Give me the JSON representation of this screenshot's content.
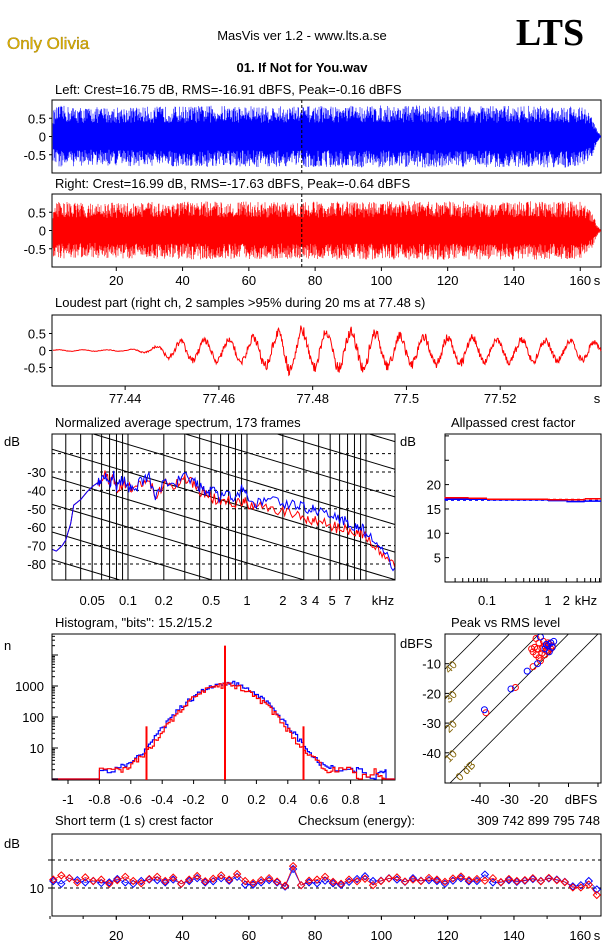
{
  "header": {
    "artist": "Only Olivia",
    "app_title": "MasVis ver 1.2 - www.lts.a.se",
    "brand": "LTS",
    "file_name": "01. If Not for You.wav"
  },
  "colors": {
    "left": "#0000ff",
    "right": "#ff0000"
  },
  "chart_data": [
    {
      "id": "left_waveform",
      "type": "area",
      "title": "Left: Crest=16.75 dB, RMS=-16.91 dBFS, Peak=-0.16 dBFS",
      "yticks": [
        "0.5",
        "0",
        "-0.5"
      ],
      "ylim": [
        -1,
        1
      ],
      "xlim": [
        0,
        166
      ],
      "envelope_t": [
        0,
        2,
        10,
        30,
        50,
        70,
        90,
        110,
        130,
        150,
        160,
        163,
        165,
        166
      ],
      "envelope": [
        0.7,
        0.85,
        0.8,
        0.82,
        0.85,
        0.83,
        0.85,
        0.85,
        0.84,
        0.85,
        0.85,
        0.6,
        0.15,
        0.02
      ]
    },
    {
      "id": "right_waveform",
      "type": "area",
      "title": "Right: Crest=16.99 dB, RMS=-17.63 dBFS, Peak=-0.64 dBFS",
      "yticks": [
        "0.5",
        "0",
        "-0.5"
      ],
      "xticks": [
        "20",
        "40",
        "60",
        "80",
        "100",
        "120",
        "140",
        "160"
      ],
      "xunit": "s",
      "ylim": [
        -1,
        1
      ],
      "xlim": [
        0,
        166
      ],
      "marker_time": 77.48,
      "envelope_t": [
        0,
        2,
        10,
        30,
        50,
        70,
        90,
        110,
        130,
        150,
        160,
        163,
        165,
        166
      ],
      "envelope": [
        0.7,
        0.8,
        0.75,
        0.78,
        0.8,
        0.78,
        0.8,
        0.8,
        0.8,
        0.8,
        0.8,
        0.55,
        0.12,
        0.02
      ]
    },
    {
      "id": "loudest_part",
      "type": "line",
      "title": "Loudest part (right ch, 2 samples >95% during 20 ms at 77.48 s)",
      "yticks": [
        "0.5",
        "0",
        "-0.5"
      ],
      "xticks": [
        "77.44",
        "77.46",
        "77.48",
        "77.5",
        "77.52"
      ],
      "xunit": "s",
      "ylim": [
        -1,
        1
      ],
      "xlim": [
        77.4244,
        77.5415
      ],
      "envelope_t": [
        77.4244,
        77.44,
        77.445,
        77.452,
        77.465,
        77.477,
        77.48,
        77.49,
        77.5,
        77.52,
        77.5415
      ],
      "envelope": [
        0.03,
        0.03,
        0.1,
        0.4,
        0.45,
        0.9,
        0.7,
        0.8,
        0.6,
        0.5,
        0.35
      ]
    },
    {
      "id": "spectrum",
      "type": "line",
      "title": "Normalized average spectrum, 173 frames",
      "ylabel": "dB",
      "yticks": [
        "-30",
        "-40",
        "-50",
        "-60",
        "-70",
        "-80"
      ],
      "xticks": [
        "0.05",
        "0.1",
        "0.2",
        "0.5",
        "1",
        "2",
        "3",
        "4",
        "5",
        "7"
      ],
      "xunit": "kHz",
      "ylim": [
        -88.7,
        -9.3
      ],
      "x_log": true,
      "grid": true,
      "freq_khz": [
        0.023,
        0.025,
        0.028,
        0.03,
        0.033,
        0.035,
        0.04,
        0.045,
        0.05,
        0.055,
        0.06,
        0.065,
        0.07,
        0.075,
        0.08,
        0.09,
        0.1,
        0.11,
        0.13,
        0.15,
        0.17,
        0.2,
        0.25,
        0.3,
        0.35,
        0.4,
        0.45,
        0.5,
        0.6,
        0.7,
        0.8,
        0.9,
        1.0,
        1.2,
        1.5,
        2.0,
        2.5,
        3.0,
        3.5,
        4.0,
        5.0,
        6.0,
        7.0,
        8.0,
        9.0,
        10.0,
        12.0,
        14.0,
        17.5
      ],
      "series": [
        {
          "name": "left",
          "values": [
            -72,
            -73,
            -70,
            -67,
            -58,
            -48,
            -45,
            -41,
            -38,
            -36,
            -34,
            -32,
            -37,
            -30,
            -39,
            -34,
            -38,
            -40,
            -35,
            -33,
            -43,
            -35,
            -36,
            -32,
            -35,
            -38,
            -41,
            -40,
            -44,
            -41,
            -46,
            -38,
            -44,
            -47,
            -44,
            -47,
            -48,
            -49,
            -50,
            -51,
            -53,
            -56,
            -57,
            -60,
            -60,
            -63,
            -70,
            -74,
            -82
          ]
        },
        {
          "name": "right",
          "values": [
            -72,
            -73,
            -70,
            -67,
            -58,
            -48,
            -45,
            -41,
            -38,
            -36,
            -35,
            -30,
            -38,
            -31,
            -41,
            -36,
            -38,
            -41,
            -36,
            -34,
            -44,
            -36,
            -37,
            -33,
            -36,
            -40,
            -42,
            -44,
            -46,
            -44,
            -48,
            -46,
            -47,
            -49,
            -50,
            -51,
            -53,
            -55,
            -56,
            -57,
            -59,
            -61,
            -61,
            -62,
            -63,
            -65,
            -71,
            -76,
            -82
          ]
        }
      ]
    },
    {
      "id": "allpassed_crest",
      "type": "line",
      "title": "Allpassed crest factor",
      "ylabel": "dB",
      "yticks": [
        "20",
        "15",
        "10",
        "5"
      ],
      "xticks": [
        "0.1",
        "1",
        "2"
      ],
      "xunit": "kHz",
      "ylim": [
        0,
        30.4
      ],
      "x_log": true,
      "freq_khz": [
        0.02,
        0.05,
        0.1,
        0.3,
        1,
        2,
        4,
        7.4
      ],
      "series": [
        {
          "name": "left",
          "values": [
            17.0,
            17.0,
            16.9,
            16.9,
            16.7,
            16.5,
            16.6,
            16.8
          ]
        },
        {
          "name": "right",
          "values": [
            17.3,
            17.2,
            17.0,
            17.0,
            16.9,
            16.9,
            17.1,
            17.4
          ]
        }
      ],
      "reference_lines": [
        {
          "name": "left",
          "value": 16.75
        },
        {
          "name": "right",
          "value": 16.99
        }
      ]
    },
    {
      "id": "histogram",
      "type": "line",
      "title": "Histogram, \"bits\": 15.2/15.2",
      "ylabel": "n",
      "yticks": [
        "1000",
        "100",
        "10"
      ],
      "xticks": [
        "-1",
        "-0.8",
        "-0.6",
        "-0.4",
        "-0.2",
        "0",
        "0.2",
        "0.4",
        "0.6",
        "0.8",
        "1"
      ],
      "y_log": true,
      "xlim": [
        -1.1,
        1.1
      ],
      "ylim": [
        1,
        50000
      ],
      "x": [
        -0.8,
        -0.7,
        -0.65,
        -0.6,
        -0.55,
        -0.5,
        -0.45,
        -0.4,
        -0.35,
        -0.3,
        -0.25,
        -0.2,
        -0.15,
        -0.1,
        -0.05,
        0,
        0.05,
        0.1,
        0.15,
        0.2,
        0.25,
        0.3,
        0.35,
        0.4,
        0.45,
        0.5,
        0.55,
        0.6,
        0.65,
        0.7,
        0.8,
        0.85,
        0.95,
        1.0
      ],
      "series": [
        {
          "name": "left",
          "values": [
            2,
            2,
            3,
            3,
            6,
            10,
            22,
            45,
            90,
            170,
            300,
            480,
            700,
            950,
            1150,
            1300,
            1200,
            1000,
            750,
            520,
            320,
            190,
            100,
            50,
            24,
            12,
            6,
            3,
            3,
            2,
            2,
            2,
            1,
            2
          ],
          "spikes": []
        },
        {
          "name": "right",
          "values": [
            2,
            2,
            2,
            3,
            5,
            8,
            17,
            36,
            75,
            150,
            260,
            420,
            620,
            850,
            1000,
            1100,
            1000,
            850,
            620,
            420,
            260,
            150,
            75,
            36,
            17,
            8,
            5,
            3,
            2,
            2,
            2,
            1,
            2,
            1
          ],
          "spikes": [
            {
              "x": 0,
              "n": 20000
            },
            {
              "x": -0.5,
              "n": 50
            },
            {
              "x": 0.5,
              "n": 50
            }
          ]
        }
      ]
    },
    {
      "id": "peak_vs_rms",
      "type": "scatter",
      "title": "Peak vs RMS level",
      "ylabel": "dBFS",
      "xlabel": "dBFS",
      "yticks": [
        "-10",
        "-20",
        "-30",
        "-40"
      ],
      "xticks": [
        "-40",
        "-30",
        "-20"
      ],
      "xlim": [
        -52,
        1
      ],
      "ylim": [
        -50,
        0
      ],
      "crest_lines": [
        "0 dB",
        "10",
        "20",
        "30",
        "40"
      ],
      "series": [
        {
          "name": "left",
          "points": [
            [
              -38.5,
              -25.5
            ],
            [
              -29.5,
              -18.5
            ],
            [
              -24,
              -12.5
            ],
            [
              -20.5,
              -10
            ],
            [
              -19.5,
              -1
            ],
            [
              -15,
              -2.5
            ],
            [
              -16,
              -3
            ],
            [
              -17,
              -4
            ],
            [
              -18,
              -5
            ],
            [
              -16.5,
              -6
            ],
            [
              -15.5,
              -4.5
            ],
            [
              -17.5,
              -3.5
            ]
          ]
        },
        {
          "name": "right",
          "points": [
            [
              -38,
              -26.5
            ],
            [
              -28,
              -18
            ],
            [
              -22,
              -11
            ],
            [
              -19.5,
              -9
            ],
            [
              -21,
              -1.5
            ],
            [
              -22,
              -6
            ],
            [
              -21,
              -7
            ],
            [
              -20,
              -8
            ],
            [
              -19,
              -5
            ],
            [
              -18,
              -4
            ],
            [
              -17,
              -3
            ],
            [
              -16,
              -5
            ],
            [
              -20,
              -3
            ],
            [
              -21.5,
              -4.5
            ],
            [
              -19,
              -6.5
            ],
            [
              -18,
              -7
            ],
            [
              -17.5,
              -5.5
            ],
            [
              -16.5,
              -3.5
            ],
            [
              -20.5,
              -5
            ],
            [
              -18.5,
              -2.5
            ],
            [
              -22.5,
              -5
            ],
            [
              -17,
              -6
            ],
            [
              -15.5,
              -4
            ]
          ]
        }
      ]
    },
    {
      "id": "short_term_crest",
      "type": "scatter",
      "title": "Short term (1 s) crest factor",
      "ylabel": "dB",
      "yticks": [
        "10"
      ],
      "xticks": [
        "20",
        "40",
        "60",
        "80",
        "100",
        "120",
        "140",
        "160"
      ],
      "xunit": "s",
      "xlim": [
        0,
        166
      ],
      "ylim": [
        0,
        29.6
      ],
      "dashed_lines": [
        10,
        20
      ],
      "t_range": [
        1,
        165
      ],
      "series": [
        {
          "name": "left",
          "values": [
            12.5,
            11.5,
            13.5,
            12.8,
            12,
            12.5,
            11.8,
            12,
            13.2,
            12,
            11.5,
            12.5,
            13,
            12.8,
            12,
            13,
            11.5,
            12.5,
            13.5,
            12,
            12.4,
            13.5,
            12.6,
            14,
            11.2,
            11.2,
            12,
            12.8,
            12,
            10.5,
            16.8,
            11,
            12,
            11.7,
            12.6,
            11.7,
            11.1,
            12.2,
            13.2,
            14.2,
            12.5,
            12.6,
            13.5,
            13,
            12.2,
            13.5,
            12.6,
            12.8,
            12.5,
            11.5,
            12.6,
            13.5,
            12.4,
            12.5,
            14.8,
            12,
            12,
            12.8,
            12.2,
            12.6,
            13.2,
            12.5,
            13.4,
            13,
            12.2,
            10.6,
            11,
            12.5,
            9.5
          ]
        },
        {
          "name": "right",
          "values": [
            13,
            14.5,
            13.5,
            12,
            13.8,
            12.5,
            13,
            11.5,
            12.8,
            14,
            12.5,
            11.7,
            13.2,
            14,
            12.5,
            13.7,
            11.5,
            13,
            14.3,
            12.4,
            13.3,
            14.5,
            13,
            15,
            12.5,
            11.8,
            12.8,
            13.5,
            12.3,
            10.8,
            17.8,
            11,
            12.6,
            13,
            14,
            12.2,
            11.5,
            13,
            12.4,
            13.3,
            11,
            12.5,
            13.4,
            13.8,
            12.3,
            13,
            12.5,
            13.6,
            13,
            12.2,
            13.4,
            14.1,
            12.8,
            13.2,
            12.6,
            13.5,
            12.1,
            13.2,
            12.5,
            12.8,
            13.5,
            12.4,
            13.6,
            12.8,
            12.1,
            10.2,
            10.2,
            11.2,
            7.5
          ]
        }
      ]
    }
  ],
  "checksum": {
    "label": "Checksum (energy):",
    "value": "309 742 899 795 748"
  }
}
